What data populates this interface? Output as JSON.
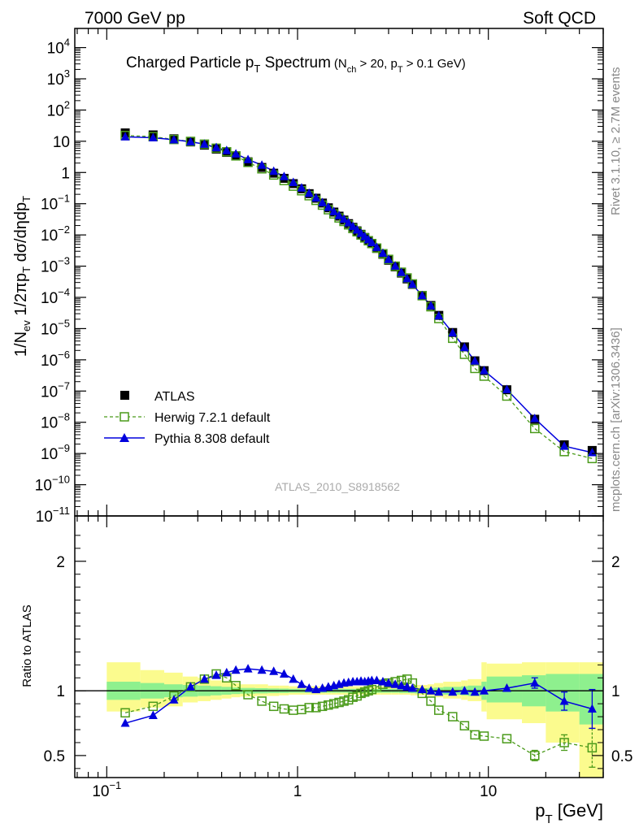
{
  "header": {
    "left": "7000 GeV pp",
    "right": "Soft QCD"
  },
  "title": {
    "main": "Charged Particle p",
    "main_sub": "T",
    "main_tail": " Spectrum",
    "cond": "(N",
    "cond_sub1": "ch",
    "cond_mid": " > 20, p",
    "cond_sub2": "T",
    "cond_tail": " > 0.1 GeV)"
  },
  "side": {
    "rivet": "Rivet 3.1.10, ≥ 2.7M events",
    "mcplots": "mcplots.cern.ch [arXiv:1306.3436]"
  },
  "analysis_id": "ATLAS_2010_S8918562",
  "legend": {
    "data": "ATLAS",
    "herwig": "Herwig 7.2.1 default",
    "pythia": "Pythia 8.308 default"
  },
  "axes": {
    "ylabel_main": "1/N_ev 1/2πp_T dσ/dηdp_T",
    "ylabel_ratio": "Ratio to ATLAS",
    "xlabel": "p_T  [GeV]"
  },
  "colors": {
    "data": "#000000",
    "herwig": "#4a9a1a",
    "pythia": "#0000dd",
    "band_green": "#8ef08e",
    "band_yellow": "#fbfb8e"
  },
  "chart_data": [
    {
      "type": "scatter",
      "panel": "spectrum",
      "xscale": "log",
      "yscale": "log",
      "xlim": [
        0.068,
        40
      ],
      "ylim": [
        1e-11,
        20000
      ],
      "x_ticklabels": [
        "10^-1",
        "1",
        "10"
      ],
      "y_ticklabels": [
        "10^4",
        "10^3",
        "10^2",
        "10",
        "1",
        "10^-1",
        "10^-2",
        "10^-3",
        "10^-4",
        "10^-5",
        "10^-6",
        "10^-7",
        "10^-8",
        "10^-9",
        "10^-10",
        "10^-11"
      ],
      "x": [
        0.125,
        0.175,
        0.225,
        0.275,
        0.325,
        0.375,
        0.425,
        0.475,
        0.55,
        0.65,
        0.75,
        0.85,
        0.95,
        1.05,
        1.15,
        1.25,
        1.35,
        1.45,
        1.55,
        1.65,
        1.75,
        1.85,
        1.95,
        2.05,
        2.15,
        2.25,
        2.35,
        2.45,
        2.6,
        2.8,
        3.0,
        3.25,
        3.5,
        3.75,
        4.0,
        4.5,
        5.0,
        5.5,
        6.5,
        7.5,
        8.5,
        9.5,
        12.5,
        17.5,
        25.0,
        35.0
      ],
      "series": [
        {
          "name": "ATLAS",
          "values": [
            18.5,
            16.0,
            12.0,
            9.5,
            7.5,
            5.6,
            4.4,
            3.4,
            2.2,
            1.45,
            0.95,
            0.65,
            0.44,
            0.3,
            0.21,
            0.15,
            0.105,
            0.074,
            0.054,
            0.04,
            0.03,
            0.023,
            0.0175,
            0.0135,
            0.0105,
            0.0083,
            0.0066,
            0.0053,
            0.0037,
            0.0024,
            0.00155,
            0.00095,
            0.0006,
            0.00039,
            0.00026,
            0.000115,
            5.5e-05,
            2.65e-05,
            7.5e-06,
            2.6e-06,
            9.3e-07,
            4.5e-07,
            1.1e-07,
            1.25e-08,
            1.9e-09,
            1.25e-09
          ]
        },
        {
          "name": "Herwig 7.2.1 default",
          "values": [
            15.3,
            14.0,
            11.4,
            9.9,
            8.1,
            6.0,
            4.6,
            3.4,
            2.1,
            1.31,
            0.83,
            0.55,
            0.365,
            0.26,
            0.18,
            0.128,
            0.09,
            0.064,
            0.047,
            0.035,
            0.027,
            0.021,
            0.016,
            0.0126,
            0.0099,
            0.008,
            0.0065,
            0.0053,
            0.0038,
            0.0025,
            0.00165,
            0.001,
            0.00064,
            0.00042,
            0.00027,
            0.000113,
            5e-05,
            2.1e-05,
            4.9e-06,
            1.5e-06,
            5.3e-07,
            3e-07,
            6.9e-08,
            6.3e-09,
            1.15e-09,
            6.9e-10
          ]
        },
        {
          "name": "Pythia 8.308 default",
          "values": [
            13.9,
            13.0,
            11.2,
            9.6,
            8.1,
            6.3,
            5.05,
            3.95,
            2.6,
            1.72,
            1.1,
            0.74,
            0.48,
            0.32,
            0.215,
            0.153,
            0.108,
            0.077,
            0.056,
            0.042,
            0.032,
            0.0245,
            0.0188,
            0.0145,
            0.0113,
            0.0089,
            0.0071,
            0.0057,
            0.004,
            0.0026,
            0.00165,
            0.00101,
            0.00063,
            0.0004,
            0.00026,
            0.000114,
            5.4e-05,
            2.58e-05,
            7.3e-06,
            2.5e-06,
            9.2e-07,
            4.5e-07,
            1.12e-07,
            1.32e-08,
            1.72e-09,
            1.07e-09
          ]
        }
      ]
    },
    {
      "type": "line",
      "panel": "ratio",
      "xscale": "log",
      "xlim": [
        0.068,
        40
      ],
      "ylim": [
        0.33,
        2.35
      ],
      "ylabel": "Ratio to ATLAS",
      "y_ticklabels": [
        "0.5",
        "1",
        "2"
      ],
      "reference_line": 1,
      "x": [
        0.125,
        0.175,
        0.225,
        0.275,
        0.325,
        0.375,
        0.425,
        0.475,
        0.55,
        0.65,
        0.75,
        0.85,
        0.95,
        1.05,
        1.15,
        1.25,
        1.35,
        1.45,
        1.55,
        1.65,
        1.75,
        1.85,
        1.95,
        2.05,
        2.15,
        2.25,
        2.35,
        2.45,
        2.6,
        2.8,
        3.0,
        3.25,
        3.5,
        3.75,
        4.0,
        4.5,
        5.0,
        5.5,
        6.5,
        7.5,
        8.5,
        9.5,
        12.5,
        17.5,
        25.0,
        35.0
      ],
      "series": [
        {
          "name": "Herwig 7.2.1 default",
          "values": [
            0.83,
            0.88,
            0.96,
            1.03,
            1.09,
            1.13,
            1.1,
            1.04,
            0.97,
            0.92,
            0.88,
            0.86,
            0.85,
            0.855,
            0.87,
            0.87,
            0.88,
            0.89,
            0.9,
            0.91,
            0.92,
            0.93,
            0.95,
            0.96,
            0.98,
            0.99,
            1.0,
            1.01,
            1.03,
            1.05,
            1.06,
            1.07,
            1.08,
            1.09,
            1.06,
            0.98,
            0.92,
            0.85,
            0.8,
            0.73,
            0.66,
            0.65,
            0.63,
            0.5,
            0.6,
            0.56
          ],
          "errors": [
            0,
            0,
            0,
            0,
            0,
            0,
            0,
            0,
            0,
            0,
            0,
            0,
            0,
            0,
            0,
            0,
            0,
            0,
            0,
            0,
            0,
            0,
            0,
            0,
            0,
            0,
            0,
            0,
            0,
            0,
            0,
            0,
            0,
            0,
            0,
            0,
            0,
            0,
            0,
            0,
            0,
            0,
            0,
            0.04,
            0.06,
            0.15
          ]
        },
        {
          "name": "Pythia 8.308 default",
          "values": [
            0.75,
            0.81,
            0.93,
            1.03,
            1.09,
            1.12,
            1.14,
            1.16,
            1.17,
            1.16,
            1.15,
            1.13,
            1.09,
            1.05,
            1.02,
            1.01,
            1.02,
            1.03,
            1.04,
            1.05,
            1.06,
            1.065,
            1.07,
            1.07,
            1.075,
            1.07,
            1.075,
            1.08,
            1.08,
            1.07,
            1.06,
            1.05,
            1.04,
            1.03,
            1.02,
            1.01,
            1.0,
            0.99,
            0.99,
            1.0,
            0.99,
            1.0,
            1.02,
            1.06,
            0.92,
            0.86
          ],
          "errors": [
            0,
            0,
            0,
            0,
            0,
            0,
            0,
            0,
            0,
            0,
            0,
            0,
            0,
            0,
            0,
            0,
            0,
            0,
            0,
            0,
            0,
            0,
            0,
            0,
            0,
            0,
            0,
            0,
            0,
            0,
            0,
            0,
            0,
            0,
            0,
            0,
            0,
            0,
            0,
            0,
            0,
            0,
            0,
            0.04,
            0.07,
            0.15
          ]
        }
      ],
      "bands": {
        "edges": [
          0.1,
          0.15,
          0.2,
          0.25,
          0.3,
          0.35,
          0.4,
          0.45,
          0.5,
          0.6,
          0.7,
          0.8,
          0.9,
          1.0,
          1.1,
          1.2,
          1.3,
          1.4,
          1.5,
          1.6,
          1.7,
          1.8,
          1.9,
          2.0,
          2.1,
          2.2,
          2.3,
          2.4,
          2.5,
          2.7,
          2.9,
          3.1,
          3.4,
          3.6,
          3.9,
          4.1,
          4.8,
          5.2,
          5.8,
          7.2,
          7.8,
          9.2,
          9.8,
          15,
          20,
          30,
          40
        ],
        "yellow": [
          [
            0.84,
            1.22
          ],
          [
            0.87,
            1.16
          ],
          [
            0.88,
            1.14
          ],
          [
            0.91,
            1.11
          ],
          [
            0.92,
            1.1
          ],
          [
            0.93,
            1.08
          ],
          [
            0.94,
            1.07
          ],
          [
            0.95,
            1.06
          ],
          [
            0.955,
            1.05
          ],
          [
            0.96,
            1.05
          ],
          [
            0.96,
            1.04
          ],
          [
            0.965,
            1.04
          ],
          [
            0.97,
            1.035
          ],
          [
            0.97,
            1.035
          ],
          [
            0.97,
            1.035
          ],
          [
            0.97,
            1.035
          ],
          [
            0.97,
            1.035
          ],
          [
            0.97,
            1.035
          ],
          [
            0.97,
            1.035
          ],
          [
            0.97,
            1.035
          ],
          [
            0.97,
            1.035
          ],
          [
            0.97,
            1.035
          ],
          [
            0.97,
            1.035
          ],
          [
            0.97,
            1.035
          ],
          [
            0.97,
            1.035
          ],
          [
            0.97,
            1.035
          ],
          [
            0.97,
            1.035
          ],
          [
            0.97,
            1.035
          ],
          [
            0.97,
            1.035
          ],
          [
            0.97,
            1.035
          ],
          [
            0.97,
            1.035
          ],
          [
            0.97,
            1.035
          ],
          [
            0.97,
            1.04
          ],
          [
            0.97,
            1.04
          ],
          [
            0.965,
            1.04
          ],
          [
            0.965,
            1.045
          ],
          [
            0.96,
            1.05
          ],
          [
            0.95,
            1.06
          ],
          [
            0.94,
            1.07
          ],
          [
            0.93,
            1.08
          ],
          [
            0.92,
            1.09
          ],
          [
            0.84,
            1.22
          ],
          [
            0.78,
            1.21
          ],
          [
            0.75,
            1.22
          ],
          [
            0.6,
            1.22
          ],
          [
            0.33,
            1.22
          ]
        ],
        "green": [
          [
            0.93,
            1.07
          ],
          [
            0.94,
            1.06
          ],
          [
            0.95,
            1.05
          ],
          [
            0.955,
            1.045
          ],
          [
            0.96,
            1.04
          ],
          [
            0.965,
            1.035
          ],
          [
            0.97,
            1.03
          ],
          [
            0.975,
            1.025
          ],
          [
            0.978,
            1.022
          ],
          [
            0.98,
            1.02
          ],
          [
            0.982,
            1.018
          ],
          [
            0.983,
            1.017
          ],
          [
            0.985,
            1.015
          ],
          [
            0.985,
            1.015
          ],
          [
            0.985,
            1.015
          ],
          [
            0.985,
            1.015
          ],
          [
            0.985,
            1.015
          ],
          [
            0.985,
            1.015
          ],
          [
            0.985,
            1.015
          ],
          [
            0.985,
            1.015
          ],
          [
            0.985,
            1.015
          ],
          [
            0.985,
            1.015
          ],
          [
            0.985,
            1.015
          ],
          [
            0.985,
            1.015
          ],
          [
            0.985,
            1.015
          ],
          [
            0.985,
            1.015
          ],
          [
            0.985,
            1.015
          ],
          [
            0.985,
            1.015
          ],
          [
            0.985,
            1.015
          ],
          [
            0.985,
            1.015
          ],
          [
            0.985,
            1.015
          ],
          [
            0.985,
            1.015
          ],
          [
            0.983,
            1.017
          ],
          [
            0.983,
            1.017
          ],
          [
            0.982,
            1.018
          ],
          [
            0.98,
            1.02
          ],
          [
            0.978,
            1.022
          ],
          [
            0.975,
            1.025
          ],
          [
            0.97,
            1.03
          ],
          [
            0.965,
            1.035
          ],
          [
            0.96,
            1.04
          ],
          [
            0.93,
            1.07
          ],
          [
            0.91,
            1.11
          ],
          [
            0.88,
            1.12
          ],
          [
            0.84,
            1.13
          ],
          [
            0.74,
            1.13
          ]
        ]
      }
    }
  ]
}
